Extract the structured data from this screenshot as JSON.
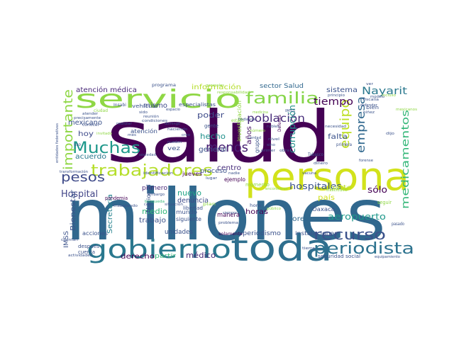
{
  "word_cloud": {
    "words": [
      {
        "text": "salud",
        "color": "#440154"
      },
      {
        "text": "millones",
        "color": "#31688e"
      },
      {
        "text": "persona",
        "color": "#d2e21b"
      },
      {
        "text": "servicio",
        "color": "#8fd744"
      },
      {
        "text": "toda",
        "color": "#2e6f8e"
      },
      {
        "text": "gobierno",
        "color": "#2a788e"
      },
      {
        "text": "trabajadores",
        "color": "#b5de2b"
      },
      {
        "text": "Muchas",
        "color": "#1f988b"
      },
      {
        "text": "familia",
        "color": "#86d549"
      },
      {
        "text": "importante",
        "color": "#8fd744"
      },
      {
        "text": "periodista",
        "color": "#2c728e"
      },
      {
        "text": "recurso",
        "color": "#3b528b"
      },
      {
        "text": "pesos",
        "color": "#3e4a89"
      },
      {
        "text": "menos",
        "color": "#482173"
      },
      {
        "text": "equipo",
        "color": "#bddf26"
      },
      {
        "text": "empresa",
        "color": "#31688e"
      },
      {
        "text": "medicamentos",
        "color": "#35b779"
      },
      {
        "text": "población",
        "color": "#472c7a"
      },
      {
        "text": "Nayarit",
        "color": "#2a788e"
      },
      {
        "text": "tiempo",
        "color": "#440154"
      },
      {
        "text": "hospitales",
        "color": "#3b528b"
      },
      {
        "text": "aeropuerto",
        "color": "#1f988b"
      },
      {
        "text": "corrupción",
        "color": "#21918c"
      },
      {
        "text": "Hospital",
        "color": "#414487"
      },
      {
        "text": "sólo",
        "color": "#440154"
      },
      {
        "text": "atención médica",
        "color": "#482878"
      },
      {
        "text": "información",
        "color": "#b5de2b"
      },
      {
        "text": "sistema",
        "color": "#3b528b"
      },
      {
        "text": "poder",
        "color": "#3e4a89"
      },
      {
        "text": "hecho",
        "color": "#21918c"
      },
      {
        "text": "mexicano",
        "color": "#3b528b"
      },
      {
        "text": "hoy",
        "color": "#3e4a89"
      },
      {
        "text": "acuerdo",
        "color": "#2a788e"
      },
      {
        "text": "medio",
        "color": "#35b779"
      },
      {
        "text": "nuevo",
        "color": "#20a486"
      },
      {
        "text": "mismo",
        "color": "#3e4a89"
      },
      {
        "text": "general",
        "color": "#3b528b"
      },
      {
        "text": "centro",
        "color": "#472d7b"
      },
      {
        "text": "parte",
        "color": "#b8de29"
      },
      {
        "text": "país",
        "color": "#d0e11c"
      },
      {
        "text": "falta",
        "color": "#3b528b"
      },
      {
        "text": "años",
        "color": "#481668"
      },
      {
        "text": "médico",
        "color": "#482878"
      },
      {
        "text": "derecho",
        "color": "#440154"
      },
      {
        "text": "Bienestar",
        "color": "#3b528b"
      },
      {
        "text": "Secretaría",
        "color": "#26828e"
      },
      {
        "text": "sector Salud",
        "color": "#31688e"
      },
      {
        "text": "denuncia",
        "color": "#3e4a89"
      },
      {
        "text": "trabajo",
        "color": "#3b528b"
      },
      {
        "text": "horas",
        "color": "#440154"
      },
      {
        "text": "Loret",
        "color": "#31688e"
      },
      {
        "text": "periodismo",
        "color": "#3b528b"
      },
      {
        "text": "unidades",
        "color": "#3b528b"
      },
      {
        "text": "partir",
        "color": "#35b779"
      },
      {
        "text": "primero",
        "color": "#482878"
      },
      {
        "text": "proceso",
        "color": "#3b528b"
      },
      {
        "text": "IMSS",
        "color": "#3b528b"
      },
      {
        "text": "manera",
        "color": "#440154"
      },
      {
        "text": "mundo",
        "color": "#3b528b"
      },
      {
        "text": "siguiente",
        "color": "#3b528b"
      },
      {
        "text": "atención",
        "color": "#3b528b"
      },
      {
        "text": "vez",
        "color": "#3b528b"
      },
      {
        "text": "Oaxaca",
        "color": "#3b528b"
      },
      {
        "text": "instalaciones",
        "color": "#3b528b"
      },
      {
        "text": "seguridad social",
        "color": "#3b528b"
      },
      {
        "text": "grupo",
        "color": "#3b528b"
      },
      {
        "text": "jueves",
        "color": "#440154"
      },
      {
        "text": "ejemplo",
        "color": "#440154"
      },
      {
        "text": "investigación",
        "color": "#8fd744"
      },
      {
        "text": "momento",
        "color": "#8fd744"
      },
      {
        "text": "acciones",
        "color": "#3b528b"
      },
      {
        "text": "después",
        "color": "#3b528b"
      },
      {
        "text": "cuenta",
        "color": "#3b528b"
      },
      {
        "text": "libertad",
        "color": "#3b528b"
      },
      {
        "text": "Nacional",
        "color": "#3b528b"
      },
      {
        "text": "pandemia",
        "color": "#440154"
      },
      {
        "text": "programa",
        "color": "#3b528b"
      },
      {
        "text": "especialistas",
        "color": "#3b528b"
      },
      {
        "text": "vehículo",
        "color": "#3b528b"
      },
      {
        "text": "gente",
        "color": "#3b528b"
      },
      {
        "text": "bien",
        "color": "#3b528b"
      },
      {
        "text": "seguir",
        "color": "#8fd744"
      },
      {
        "text": "solamente",
        "color": "#440154"
      },
      {
        "text": "Tabasco",
        "color": "#3b528b"
      },
      {
        "text": "Defensa",
        "color": "#440154"
      },
      {
        "text": "primera",
        "color": "#3b528b"
      },
      {
        "text": "pasado",
        "color": "#3b528b"
      },
      {
        "text": "conocer",
        "color": "#3b528b"
      },
      {
        "text": "Insabi",
        "color": "#3b528b"
      },
      {
        "text": "ciudad",
        "color": "#8fd744"
      },
      {
        "text": "estado",
        "color": "#8fd744"
      },
      {
        "text": "uso",
        "color": "#3b528b"
      },
      {
        "text": "entidades federativas",
        "color": "#3b528b"
      },
      {
        "text": "transformación",
        "color": "#3b528b"
      },
      {
        "text": "forense",
        "color": "#3b528b"
      },
      {
        "text": "vacuna",
        "color": "#3b528b"
      },
      {
        "text": "Instituto",
        "color": "#8fd744"
      },
      {
        "text": "sociedad",
        "color": "#3b528b"
      },
      {
        "text": "domingo",
        "color": "#3b528b"
      },
      {
        "text": "situación",
        "color": "#3b528b"
      },
      {
        "text": "siempre",
        "color": "#3b528b"
      },
      {
        "text": "plan",
        "color": "#8fd744"
      },
      {
        "text": "hora",
        "color": "#3b528b"
      },
      {
        "text": "embargo",
        "color": "#3b528b"
      },
      {
        "text": "búsqueda",
        "color": "#35b779"
      },
      {
        "text": "obra",
        "color": "#3b528b"
      },
      {
        "text": "tierra",
        "color": "#3b528b"
      },
      {
        "text": "fiscalía",
        "color": "#3b528b"
      },
      {
        "text": "principio",
        "color": "#3b528b"
      },
      {
        "text": "modelo",
        "color": "#3b528b"
      },
      {
        "text": "defender",
        "color": "#3b528b"
      },
      {
        "text": "medicina",
        "color": "#8fd744"
      },
      {
        "text": "verdad",
        "color": "#3b528b"
      },
      {
        "text": "cabo",
        "color": "#3b528b"
      },
      {
        "text": "atender",
        "color": "#3b528b"
      },
      {
        "text": "precisamente",
        "color": "#3b528b"
      },
      {
        "text": "identificación",
        "color": "#3b528b"
      },
      {
        "text": "condiciones",
        "color": "#3b528b"
      },
      {
        "text": "trabajando",
        "color": "#3b528b"
      },
      {
        "text": "haciendo",
        "color": "#3b528b"
      },
      {
        "text": "todavía",
        "color": "#3b528b"
      },
      {
        "text": "rubles",
        "color": "#3b528b"
      },
      {
        "text": "responsabilidad",
        "color": "#8fd744"
      },
      {
        "text": "reunión",
        "color": "#3b528b"
      },
      {
        "text": "espacio",
        "color": "#3b528b"
      },
      {
        "text": "encontraron",
        "color": "#8fd744"
      },
      {
        "text": "realizar",
        "color": "#3b528b"
      },
      {
        "text": "pueden",
        "color": "#3b528b"
      },
      {
        "text": "invitado",
        "color": "#8fd744"
      },
      {
        "text": "nadie",
        "color": "#3b528b"
      },
      {
        "text": "actividades",
        "color": "#3b528b"
      },
      {
        "text": "lugar",
        "color": "#3b528b"
      },
      {
        "text": "equipamiento",
        "color": "#3b528b"
      },
      {
        "text": "público",
        "color": "#8fd744"
      },
      {
        "text": "problema",
        "color": "#3b528b"
      },
      {
        "text": "mes",
        "color": "#3b528b"
      },
      {
        "text": "sido",
        "color": "#3b528b"
      },
      {
        "text": "generales",
        "color": "#8fd744"
      },
      {
        "text": "número",
        "color": "#8fd744"
      },
      {
        "text": "primer",
        "color": "#3b528b"
      },
      {
        "text": "cuentan",
        "color": "#3b528b"
      },
      {
        "text": "creo",
        "color": "#3b528b"
      },
      {
        "text": "IMSS",
        "color": "#3b528b"
      },
      {
        "text": "necesidad",
        "color": "#3b528b"
      },
      {
        "text": "sino",
        "color": "#3b528b"
      },
      {
        "text": "niñez",
        "color": "#3b528b"
      },
      {
        "text": "incluso",
        "color": "#8fd744"
      },
      {
        "text": "nivel",
        "color": "#3b528b"
      },
      {
        "text": "dijo",
        "color": "#3b528b"
      },
      {
        "text": "ver",
        "color": "#3b528b"
      },
      {
        "text": "mexicanos",
        "color": "#8fd744"
      },
      {
        "text": "dinero",
        "color": "#3b528b"
      }
    ]
  }
}
